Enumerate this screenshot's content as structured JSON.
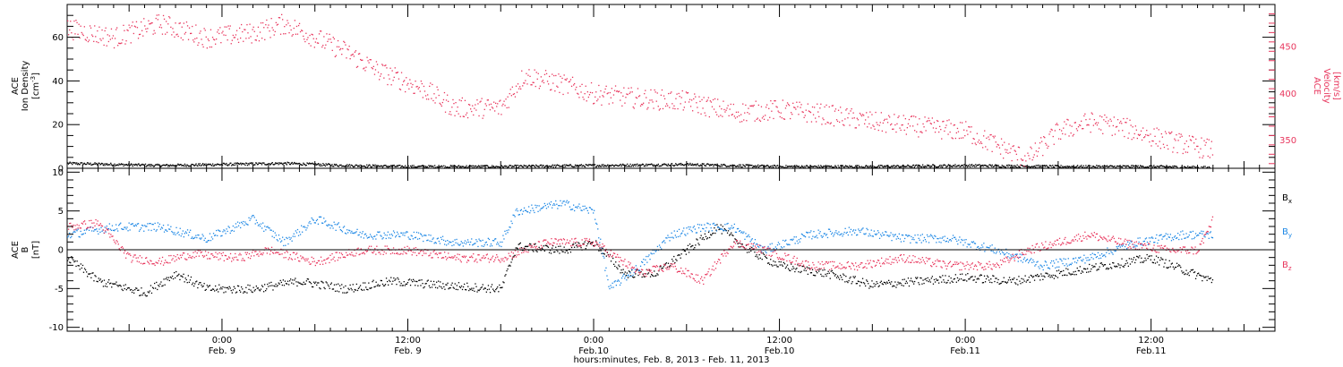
{
  "colors": {
    "density": "#000000",
    "velocity": "#e8365d",
    "bx": "#000000",
    "by": "#1e88e5",
    "bz": "#e8365d"
  },
  "xaxis": {
    "range": [
      "2013-02-08 14:00",
      "2013-02-11 20:00"
    ],
    "major_ticks": [
      {
        "time": "2013-02-09 00:00",
        "line1": "0:00",
        "line2": "Feb. 9"
      },
      {
        "time": "2013-02-09 12:00",
        "line1": "12:00",
        "line2": "Feb. 9"
      },
      {
        "time": "2013-02-10 00:00",
        "line1": "0:00",
        "line2": "Feb.10"
      },
      {
        "time": "2013-02-10 12:00",
        "line1": "12:00",
        "line2": "Feb.10"
      },
      {
        "time": "2013-02-11 00:00",
        "line1": "0:00",
        "line2": "Feb.11"
      },
      {
        "time": "2013-02-11 12:00",
        "line1": "12:00",
        "line2": "Feb.11"
      }
    ],
    "title": "hours:minutes, Feb.  8, 2013 - Feb. 11, 2013"
  },
  "chart_data": [
    {
      "type": "scatter",
      "panel": "plasma",
      "left_axis": {
        "label_lines": [
          "ACE",
          "Ion Density"
        ],
        "unit_base": "[cm",
        "unit_sup": "-3",
        "unit_end": "]",
        "ylim": [
          0,
          75
        ],
        "ticks": [
          "0",
          "20",
          "40",
          "60"
        ]
      },
      "right_axis": {
        "label_lines": [
          "ACE",
          "Velocity"
        ],
        "unit": "[km/s]",
        "ylim": [
          320,
          495
        ],
        "ticks": [
          "350",
          "400",
          "450"
        ]
      },
      "series": [
        {
          "key": "density",
          "axis": "left",
          "points": [
            [
              "2013-02-08 14:00",
              2.5
            ],
            [
              "2013-02-08 20:00",
              1.5
            ],
            [
              "2013-02-09 00:00",
              2.0
            ],
            [
              "2013-02-09 04:00",
              2.5
            ],
            [
              "2013-02-09 08:00",
              1.5
            ],
            [
              "2013-02-09 12:00",
              1.0
            ],
            [
              "2013-02-09 18:00",
              1.0
            ],
            [
              "2013-02-10 00:00",
              1.5
            ],
            [
              "2013-02-10 06:00",
              2.0
            ],
            [
              "2013-02-10 12:00",
              1.0
            ],
            [
              "2013-02-10 18:00",
              1.0
            ],
            [
              "2013-02-11 00:00",
              1.5
            ],
            [
              "2013-02-11 06:00",
              1.0
            ],
            [
              "2013-02-11 12:00",
              1.0
            ],
            [
              "2013-02-11 16:00",
              0.5
            ]
          ]
        },
        {
          "key": "velocity",
          "axis": "right",
          "points": [
            [
              "2013-02-08 14:00",
              470
            ],
            [
              "2013-02-08 17:00",
              460
            ],
            [
              "2013-02-08 20:00",
              475
            ],
            [
              "2013-02-08 23:00",
              460
            ],
            [
              "2013-02-09 02:00",
              465
            ],
            [
              "2013-02-09 04:00",
              475
            ],
            [
              "2013-02-09 06:00",
              460
            ],
            [
              "2013-02-09 08:00",
              445
            ],
            [
              "2013-02-09 10:00",
              425
            ],
            [
              "2013-02-09 13:00",
              405
            ],
            [
              "2013-02-09 15:00",
              385
            ],
            [
              "2013-02-09 18:00",
              385
            ],
            [
              "2013-02-09 19:30",
              420
            ],
            [
              "2013-02-09 22:00",
              410
            ],
            [
              "2013-02-10 00:00",
              400
            ],
            [
              "2013-02-10 03:00",
              395
            ],
            [
              "2013-02-10 06:00",
              392
            ],
            [
              "2013-02-10 09:00",
              380
            ],
            [
              "2013-02-10 12:00",
              383
            ],
            [
              "2013-02-10 15:00",
              378
            ],
            [
              "2013-02-10 18:00",
              370
            ],
            [
              "2013-02-10 21:00",
              365
            ],
            [
              "2013-02-11 00:00",
              360
            ],
            [
              "2013-02-11 02:00",
              345
            ],
            [
              "2013-02-11 04:00",
              330
            ],
            [
              "2013-02-11 06:00",
              360
            ],
            [
              "2013-02-11 08:00",
              370
            ],
            [
              "2013-02-11 10:00",
              365
            ],
            [
              "2013-02-11 13:00",
              350
            ],
            [
              "2013-02-11 16:00",
              340
            ]
          ]
        }
      ]
    },
    {
      "type": "scatter",
      "panel": "magnetic",
      "left_axis": {
        "label_lines": [
          "ACE",
          "B"
        ],
        "unit": "[nT]",
        "ylim": [
          -10.5,
          10.5
        ],
        "ticks": [
          "-10",
          "-5",
          "0",
          "5",
          "10"
        ]
      },
      "series": [
        {
          "key": "bx",
          "name_base": "B",
          "name_sub": "x",
          "points": [
            [
              "2013-02-08 14:00",
              -1
            ],
            [
              "2013-02-08 16:00",
              -4
            ],
            [
              "2013-02-08 19:00",
              -5.5
            ],
            [
              "2013-02-08 21:00",
              -3
            ],
            [
              "2013-02-08 23:00",
              -5
            ],
            [
              "2013-02-09 02:00",
              -5
            ],
            [
              "2013-02-09 05:00",
              -4
            ],
            [
              "2013-02-09 08:00",
              -5
            ],
            [
              "2013-02-09 11:00",
              -4
            ],
            [
              "2013-02-09 14:00",
              -4.5
            ],
            [
              "2013-02-09 18:00",
              -5
            ],
            [
              "2013-02-09 19:00",
              0.5
            ],
            [
              "2013-02-09 22:00",
              0
            ],
            [
              "2013-02-10 00:00",
              1
            ],
            [
              "2013-02-10 02:00",
              -3
            ],
            [
              "2013-02-10 04:00",
              -3
            ],
            [
              "2013-02-10 06:00",
              0
            ],
            [
              "2013-02-10 08:00",
              3
            ],
            [
              "2013-02-10 10:00",
              0
            ],
            [
              "2013-02-10 12:00",
              -2
            ],
            [
              "2013-02-10 15:00",
              -3
            ],
            [
              "2013-02-10 18:00",
              -4.5
            ],
            [
              "2013-02-10 21:00",
              -4
            ],
            [
              "2013-02-11 00:00",
              -3.5
            ],
            [
              "2013-02-11 03:00",
              -4
            ],
            [
              "2013-02-11 06:00",
              -3
            ],
            [
              "2013-02-11 09:00",
              -2
            ],
            [
              "2013-02-11 12:00",
              -1
            ],
            [
              "2013-02-11 14:00",
              -2.5
            ],
            [
              "2013-02-11 16:00",
              -4
            ]
          ]
        },
        {
          "key": "by",
          "name_base": "B",
          "name_sub": "y",
          "points": [
            [
              "2013-02-08 14:00",
              2
            ],
            [
              "2013-02-08 17:00",
              3
            ],
            [
              "2013-02-08 20:00",
              3
            ],
            [
              "2013-02-08 23:00",
              1.5
            ],
            [
              "2013-02-09 02:00",
              4
            ],
            [
              "2013-02-09 04:00",
              1
            ],
            [
              "2013-02-09 06:00",
              4
            ],
            [
              "2013-02-09 09:00",
              2
            ],
            [
              "2013-02-09 12:00",
              2
            ],
            [
              "2013-02-09 15:00",
              1
            ],
            [
              "2013-02-09 18:00",
              1
            ],
            [
              "2013-02-09 19:00",
              5
            ],
            [
              "2013-02-09 22:00",
              6
            ],
            [
              "2013-02-10 00:00",
              5
            ],
            [
              "2013-02-10 01:00",
              -5
            ],
            [
              "2013-02-10 03:00",
              -2
            ],
            [
              "2013-02-10 05:00",
              2
            ],
            [
              "2013-02-10 07:00",
              3
            ],
            [
              "2013-02-10 09:00",
              3
            ],
            [
              "2013-02-10 11:00",
              0
            ],
            [
              "2013-02-10 14:00",
              2
            ],
            [
              "2013-02-10 17:00",
              2.5
            ],
            [
              "2013-02-10 20:00",
              1.5
            ],
            [
              "2013-02-10 23:00",
              1.5
            ],
            [
              "2013-02-11 02:00",
              0
            ],
            [
              "2013-02-11 05:00",
              -2
            ],
            [
              "2013-02-11 08:00",
              -1
            ],
            [
              "2013-02-11 11:00",
              1
            ],
            [
              "2013-02-11 14:00",
              2
            ],
            [
              "2013-02-11 16:00",
              2
            ]
          ]
        },
        {
          "key": "bz",
          "name_base": "B",
          "name_sub": "z",
          "points": [
            [
              "2013-02-08 14:00",
              3
            ],
            [
              "2013-02-08 16:00",
              3.5
            ],
            [
              "2013-02-08 18:00",
              -1
            ],
            [
              "2013-02-08 20:00",
              -1.5
            ],
            [
              "2013-02-08 22:00",
              -0.5
            ],
            [
              "2013-02-09 01:00",
              -1
            ],
            [
              "2013-02-09 03:00",
              0
            ],
            [
              "2013-02-09 06:00",
              -1.5
            ],
            [
              "2013-02-09 09:00",
              0
            ],
            [
              "2013-02-09 12:00",
              0
            ],
            [
              "2013-02-09 15:00",
              -1
            ],
            [
              "2013-02-09 18:00",
              -1
            ],
            [
              "2013-02-09 21:00",
              1
            ],
            [
              "2013-02-10 00:00",
              1
            ],
            [
              "2013-02-10 03:00",
              -3
            ],
            [
              "2013-02-10 05:00",
              -2
            ],
            [
              "2013-02-10 07:00",
              -4
            ],
            [
              "2013-02-10 09:00",
              1
            ],
            [
              "2013-02-10 11:00",
              0
            ],
            [
              "2013-02-10 14:00",
              -2
            ],
            [
              "2013-02-10 17:00",
              -2
            ],
            [
              "2013-02-10 20:00",
              -1
            ],
            [
              "2013-02-10 23:00",
              -2
            ],
            [
              "2013-02-11 02:00",
              -2
            ],
            [
              "2013-02-11 04:00",
              0
            ],
            [
              "2013-02-11 06:00",
              1
            ],
            [
              "2013-02-11 08:00",
              2
            ],
            [
              "2013-02-11 10:00",
              1
            ],
            [
              "2013-02-11 13:00",
              0
            ],
            [
              "2013-02-11 15:00",
              0
            ],
            [
              "2013-02-11 16:00",
              4
            ]
          ]
        }
      ]
    }
  ]
}
